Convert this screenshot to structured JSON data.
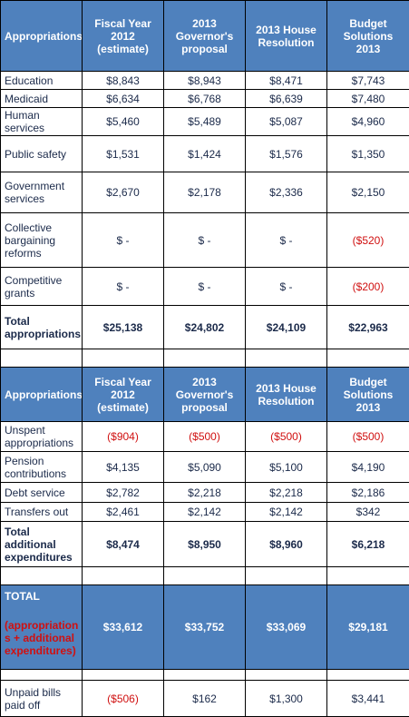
{
  "table1": {
    "header": [
      "Appropriations",
      "Fiscal Year 2012 (estimate)",
      "2013 Governor's proposal",
      "2013 House Resolution",
      "Budget Solutions 2013"
    ],
    "rows": [
      [
        "Education",
        "$8,843",
        "$8,943",
        "$8,471",
        "$7,743"
      ],
      [
        "Medicaid",
        "$6,634",
        "$6,768",
        "$6,639",
        "$7,480"
      ],
      [
        "Human services",
        "$5,460",
        "$5,489",
        "$5,087",
        "$4,960"
      ],
      [
        "Public safety",
        "$1,531",
        "$1,424",
        "$1,576",
        "$1,350"
      ],
      [
        "Government services",
        "$2,670",
        "$2,178",
        "$2,336",
        "$2,150"
      ],
      [
        "Collective bargaining reforms",
        "$ -",
        "$ -",
        "$ -",
        "($520)"
      ],
      [
        "Competitive grants",
        "$ -",
        "$ -",
        "$ -",
        "($200)"
      ],
      [
        "Total appropriations",
        "$25,138",
        "$24,802",
        "$24,109",
        "$22,963"
      ]
    ]
  },
  "table2": {
    "header": [
      "Appropriations",
      "Fiscal Year 2012 (estimate)",
      "2013 Governor's proposal",
      "2013 House Resolution",
      "Budget Solutions 2013"
    ],
    "rows": [
      [
        "Unspent appropriations",
        "($904)",
        "($500)",
        "($500)",
        "($500)"
      ],
      [
        "Pension contributions",
        "$4,135",
        "$5,090",
        "$5,100",
        "$4,190"
      ],
      [
        "Debt service",
        "$2,782",
        "$2,218",
        "$2,218",
        "$2,186"
      ],
      [
        "Transfers out",
        "$2,461",
        "$2,142",
        "$2,142",
        "$342"
      ],
      [
        "Total additional expenditures",
        "$8,474",
        "$8,950",
        "$8,960",
        "$6,218"
      ]
    ]
  },
  "total": {
    "label": "TOTAL",
    "sublabel": "(appropriation s + additional expenditures)",
    "values": [
      "$33,612",
      "$33,752",
      "$33,069",
      "$29,181"
    ]
  },
  "unpaid": {
    "label": "Unpaid bills paid off",
    "values": [
      "($506)",
      "$162",
      "$1,300",
      "$3,441"
    ]
  }
}
